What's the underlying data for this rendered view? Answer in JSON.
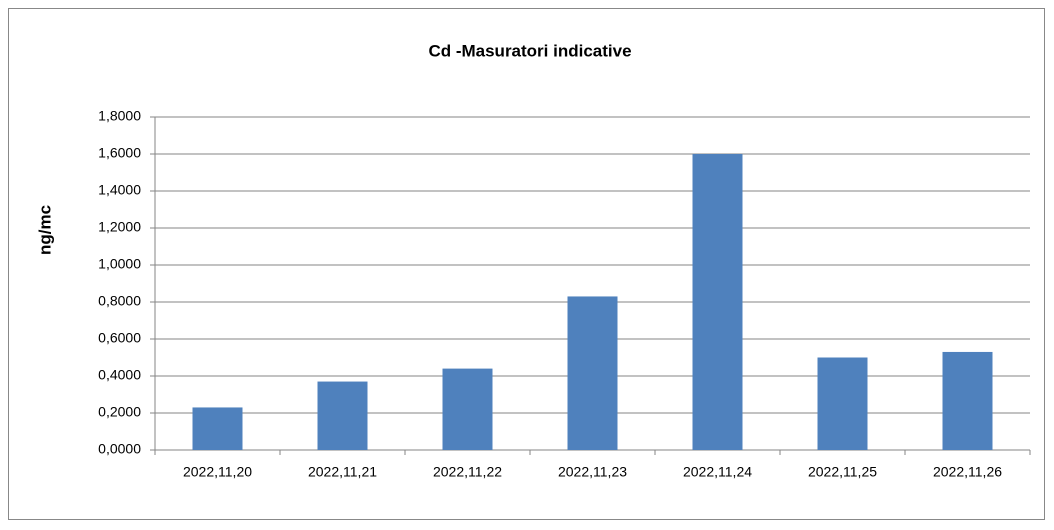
{
  "chart_data": {
    "type": "bar",
    "title": "Cd -Masuratori indicative",
    "y_label": "ng/mc",
    "categories": [
      "2022,11,20",
      "2022,11,21",
      "2022,11,22",
      "2022,11,23",
      "2022,11,24",
      "2022,11,25",
      "2022,11,26"
    ],
    "values": [
      0.23,
      0.37,
      0.44,
      0.83,
      1.6,
      0.5,
      0.53
    ],
    "color": "#4f81bd",
    "ylim": [
      0,
      1.8
    ],
    "yticks": [
      {
        "value": 0,
        "label": "0,0000"
      },
      {
        "value": 0.2,
        "label": "0,2000"
      },
      {
        "value": 0.4,
        "label": "0,4000"
      },
      {
        "value": 0.6,
        "label": "0,6000"
      },
      {
        "value": 0.8,
        "label": "0,8000"
      },
      {
        "value": 1,
        "label": "1,0000"
      },
      {
        "value": 1.2,
        "label": "1,2000"
      },
      {
        "value": 1.4,
        "label": "1,4000"
      },
      {
        "value": 1.6,
        "label": "1,6000"
      },
      {
        "value": 1.8,
        "label": "1,8000"
      }
    ],
    "grid": true
  }
}
